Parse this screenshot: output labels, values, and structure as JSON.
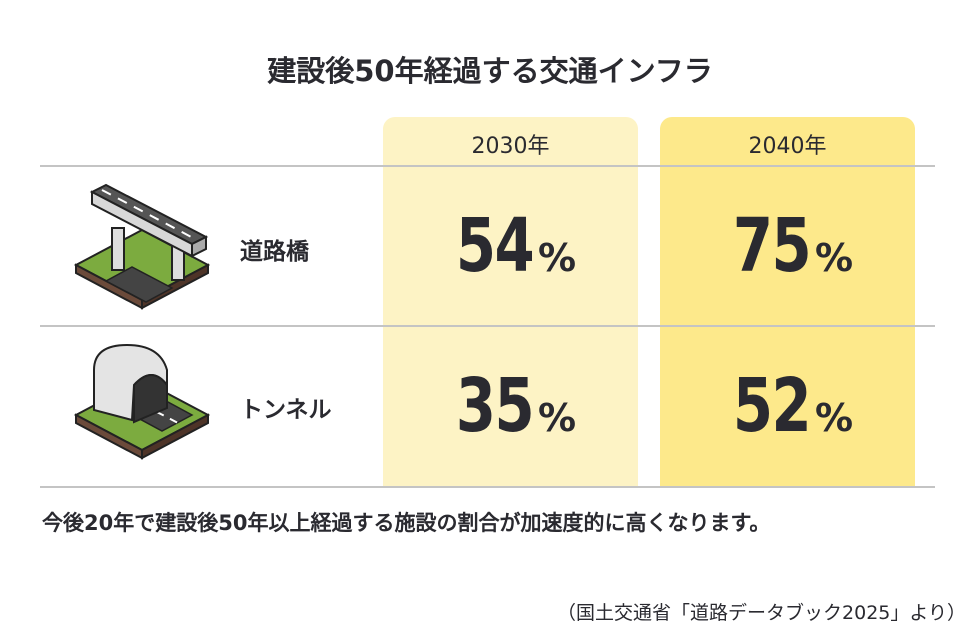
{
  "title": "建設後50年経過する交通インフラ",
  "table": {
    "columns": [
      "2030年",
      "2040年"
    ],
    "unit": "%",
    "rows": [
      {
        "label": "道路橋",
        "values": [
          54,
          75
        ]
      },
      {
        "label": "トンネル",
        "values": [
          35,
          52
        ]
      }
    ]
  },
  "note": "今後20年で建設後50年以上経過する施設の割合が加速度的に高くなります。",
  "source": "（国土交通省「道路データブック2025」より）"
}
